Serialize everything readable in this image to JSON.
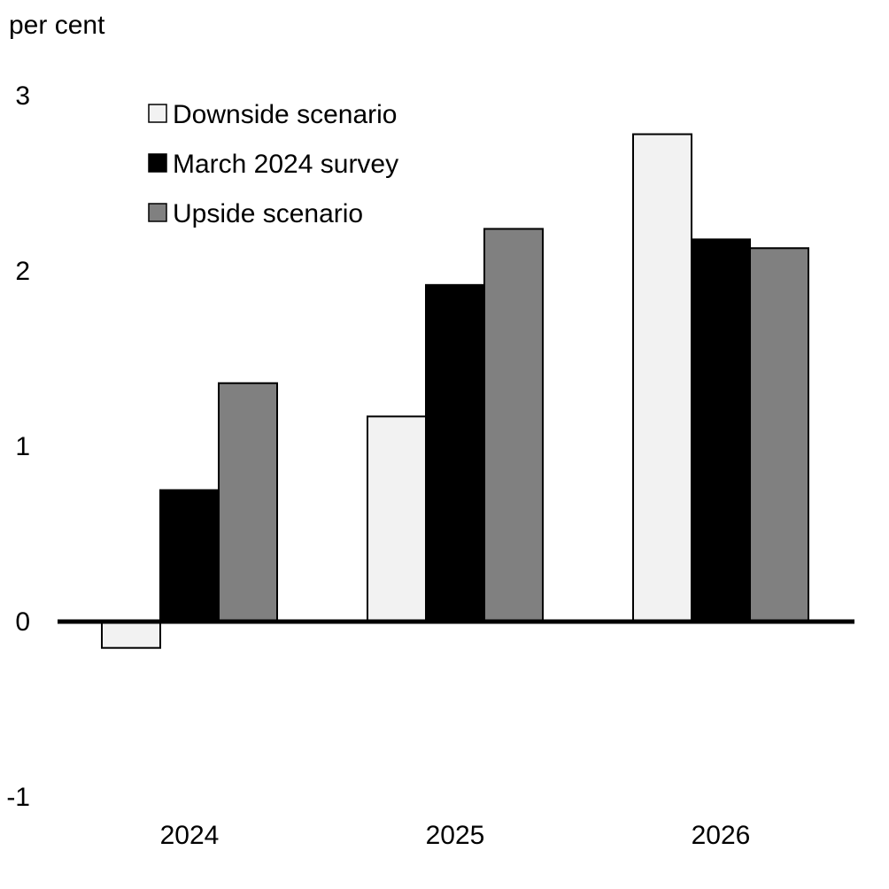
{
  "chart_data": {
    "type": "bar",
    "ylabel": "per cent",
    "categories": [
      "2024",
      "2025",
      "2026"
    ],
    "series": [
      {
        "name": "Downside scenario",
        "values": [
          -0.15,
          1.17,
          2.78
        ],
        "color": "#f2f2f2"
      },
      {
        "name": "March 2024 survey",
        "values": [
          0.75,
          1.92,
          2.18
        ],
        "color": "#000000"
      },
      {
        "name": "Upside scenario",
        "values": [
          1.36,
          2.24,
          2.13
        ],
        "color": "#808080"
      }
    ],
    "ylim": [
      -1,
      3
    ],
    "yticks": [
      "-1",
      "0",
      "1",
      "2",
      "3"
    ],
    "legend_position": "top-left",
    "grid": false
  }
}
